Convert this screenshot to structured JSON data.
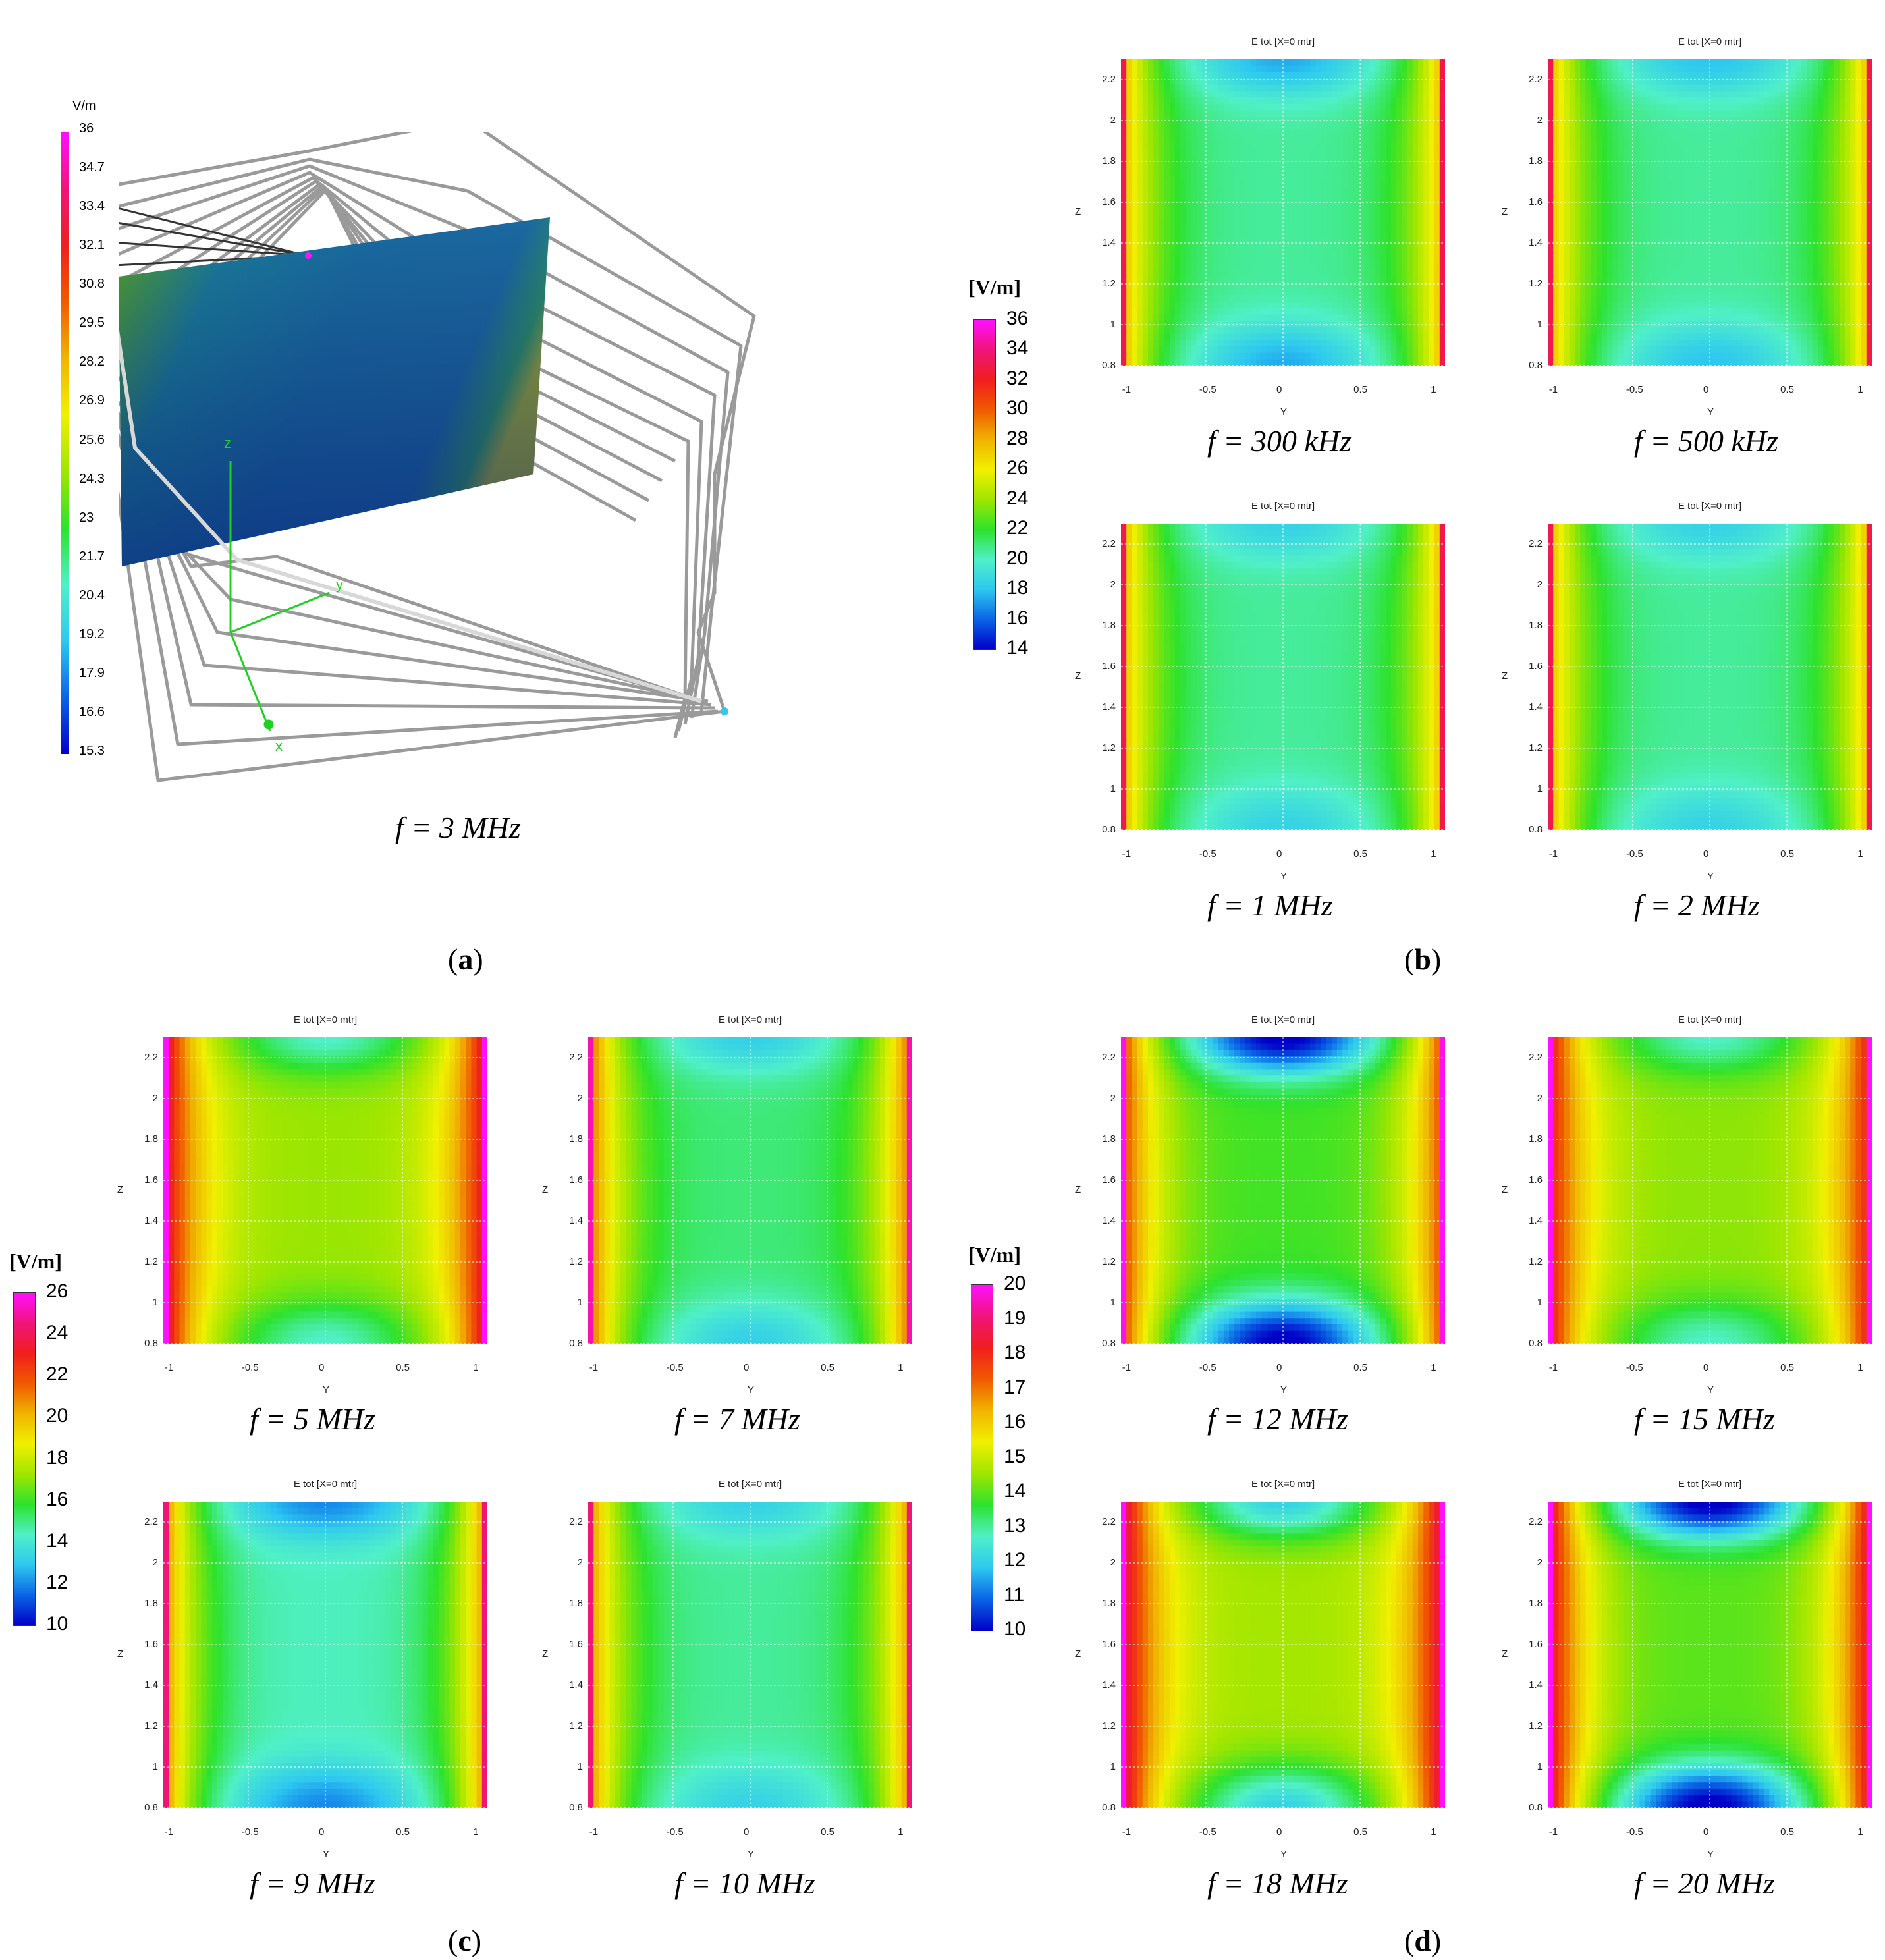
{
  "colorbars": {
    "a": {
      "unit": "V/m",
      "ticks": [
        "36",
        "34.7",
        "33.4",
        "32.1",
        "30.8",
        "29.5",
        "28.2",
        "26.9",
        "25.6",
        "24.3",
        "23",
        "21.7",
        "20.4",
        "19.2",
        "17.9",
        "16.6",
        "15.3"
      ]
    },
    "b": {
      "unit": "[V/m]",
      "ticks": [
        "36",
        "34",
        "32",
        "30",
        "28",
        "26",
        "24",
        "22",
        "20",
        "18",
        "16",
        "14"
      ]
    },
    "c": {
      "unit": "[V/m]",
      "ticks": [
        "26",
        "24",
        "22",
        "20",
        "18",
        "16",
        "14",
        "12",
        "10"
      ]
    },
    "d": {
      "unit": "[V/m]",
      "ticks": [
        "20",
        "19",
        "18",
        "17",
        "16",
        "15",
        "14",
        "13",
        "12",
        "11",
        "10"
      ]
    }
  },
  "panel_a": {
    "caption": "f = 3 MHz",
    "axis_labels": {
      "x": "x",
      "y": "y",
      "z": "z"
    },
    "letter": "a"
  },
  "panel_letters": {
    "a": "a",
    "b": "b",
    "c": "c",
    "d": "d"
  },
  "chart_data": [
    {
      "type": "heatmap",
      "panel": "b",
      "title": "E tot [X=0 mtr]",
      "caption": "f = 300 kHz",
      "xlabel": "Y",
      "ylabel": "Z",
      "xlim": [
        -1.05,
        1.05
      ],
      "ylim": [
        0.8,
        2.3
      ],
      "xticks": [
        "-1",
        "-0.5",
        "0",
        "0.5",
        "1"
      ],
      "yticks": [
        "2.2",
        "2",
        "1.8",
        "1.6",
        "1.4",
        "1.2",
        "1",
        "0.8"
      ],
      "grid": true,
      "colorbar_range_vm": [
        14,
        36
      ]
    },
    {
      "type": "heatmap",
      "panel": "b",
      "title": "E tot [X=0 mtr]",
      "caption": "f = 500 kHz",
      "xlabel": "Y",
      "ylabel": "Z",
      "xlim": [
        -1.05,
        1.05
      ],
      "ylim": [
        0.8,
        2.3
      ],
      "xticks": [
        "-1",
        "-0.5",
        "0",
        "0.5",
        "1"
      ],
      "yticks": [
        "2.2",
        "2",
        "1.8",
        "1.6",
        "1.4",
        "1.2",
        "1",
        "0.8"
      ],
      "grid": true,
      "colorbar_range_vm": [
        14,
        36
      ]
    },
    {
      "type": "heatmap",
      "panel": "b",
      "title": "E tot [X=0 mtr]",
      "caption": "f = 1 MHz",
      "xlabel": "Y",
      "ylabel": "Z",
      "xlim": [
        -1.05,
        1.05
      ],
      "ylim": [
        0.8,
        2.3
      ],
      "xticks": [
        "-1",
        "-0.5",
        "0",
        "0.5",
        "1"
      ],
      "yticks": [
        "2.2",
        "2",
        "1.8",
        "1.6",
        "1.4",
        "1.2",
        "1",
        "0.8"
      ],
      "grid": true,
      "colorbar_range_vm": [
        14,
        36
      ]
    },
    {
      "type": "heatmap",
      "panel": "b",
      "title": "E tot [X=0 mtr]",
      "caption": "f = 2 MHz",
      "xlabel": "Y",
      "ylabel": "Z",
      "xlim": [
        -1.05,
        1.05
      ],
      "ylim": [
        0.8,
        2.3
      ],
      "xticks": [
        "-1",
        "-0.5",
        "0",
        "0.5",
        "1"
      ],
      "yticks": [
        "2.2",
        "2",
        "1.8",
        "1.6",
        "1.4",
        "1.2",
        "1",
        "0.8"
      ],
      "grid": true,
      "colorbar_range_vm": [
        14,
        36
      ]
    },
    {
      "type": "heatmap",
      "panel": "c",
      "title": "E tot [X=0 mtr]",
      "caption": "f = 5 MHz",
      "xlabel": "Y",
      "ylabel": "Z",
      "xlim": [
        -1.05,
        1.05
      ],
      "ylim": [
        0.8,
        2.3
      ],
      "xticks": [
        "-1",
        "-0.5",
        "0",
        "0.5",
        "1"
      ],
      "yticks": [
        "2.2",
        "2",
        "1.8",
        "1.6",
        "1.4",
        "1.2",
        "1",
        "0.8"
      ],
      "grid": true,
      "colorbar_range_vm": [
        10,
        26
      ]
    },
    {
      "type": "heatmap",
      "panel": "c",
      "title": "E tot [X=0 mtr]",
      "caption": "f = 7 MHz",
      "xlabel": "Y",
      "ylabel": "Z",
      "xlim": [
        -1.05,
        1.05
      ],
      "ylim": [
        0.8,
        2.3
      ],
      "xticks": [
        "-1",
        "-0.5",
        "0",
        "0.5",
        "1"
      ],
      "yticks": [
        "2.2",
        "2",
        "1.8",
        "1.6",
        "1.4",
        "1.2",
        "1",
        "0.8"
      ],
      "grid": true,
      "colorbar_range_vm": [
        10,
        26
      ]
    },
    {
      "type": "heatmap",
      "panel": "c",
      "title": "E tot [X=0 mtr]",
      "caption": "f = 9 MHz",
      "xlabel": "Y",
      "ylabel": "Z",
      "xlim": [
        -1.05,
        1.05
      ],
      "ylim": [
        0.8,
        2.3
      ],
      "xticks": [
        "-1",
        "-0.5",
        "0",
        "0.5",
        "1"
      ],
      "yticks": [
        "2.2",
        "2",
        "1.8",
        "1.6",
        "1.4",
        "1.2",
        "1",
        "0.8"
      ],
      "grid": true,
      "colorbar_range_vm": [
        10,
        26
      ]
    },
    {
      "type": "heatmap",
      "panel": "c",
      "title": "E tot [X=0 mtr]",
      "caption": "f = 10 MHz",
      "xlabel": "Y",
      "ylabel": "Z",
      "xlim": [
        -1.05,
        1.05
      ],
      "ylim": [
        0.8,
        2.3
      ],
      "xticks": [
        "-1",
        "-0.5",
        "0",
        "0.5",
        "1"
      ],
      "yticks": [
        "2.2",
        "2",
        "1.8",
        "1.6",
        "1.4",
        "1.2",
        "1",
        "0.8"
      ],
      "grid": true,
      "colorbar_range_vm": [
        10,
        26
      ]
    },
    {
      "type": "heatmap",
      "panel": "d",
      "title": "E tot [X=0 mtr]",
      "caption": "f = 12 MHz",
      "xlabel": "Y",
      "ylabel": "Z",
      "xlim": [
        -1.05,
        1.05
      ],
      "ylim": [
        0.8,
        2.3
      ],
      "xticks": [
        "-1",
        "-0.5",
        "0",
        "0.5",
        "1"
      ],
      "yticks": [
        "2.2",
        "2",
        "1.8",
        "1.6",
        "1.4",
        "1.2",
        "1",
        "0.8"
      ],
      "grid": true,
      "colorbar_range_vm": [
        10,
        20
      ]
    },
    {
      "type": "heatmap",
      "panel": "d",
      "title": "E tot [X=0 mtr]",
      "caption": "f = 15 MHz",
      "xlabel": "Y",
      "ylabel": "Z",
      "xlim": [
        -1.05,
        1.05
      ],
      "ylim": [
        0.8,
        2.3
      ],
      "xticks": [
        "-1",
        "-0.5",
        "0",
        "0.5",
        "1"
      ],
      "yticks": [
        "2.2",
        "2",
        "1.8",
        "1.6",
        "1.4",
        "1.2",
        "1",
        "0.8"
      ],
      "grid": true,
      "colorbar_range_vm": [
        10,
        20
      ]
    },
    {
      "type": "heatmap",
      "panel": "d",
      "title": "E tot [X=0 mtr]",
      "caption": "f = 18 MHz",
      "xlabel": "Y",
      "ylabel": "Z",
      "xlim": [
        -1.05,
        1.05
      ],
      "ylim": [
        0.8,
        2.3
      ],
      "xticks": [
        "-1",
        "-0.5",
        "0",
        "0.5",
        "1"
      ],
      "yticks": [
        "2.2",
        "2",
        "1.8",
        "1.6",
        "1.4",
        "1.2",
        "1",
        "0.8"
      ],
      "grid": true,
      "colorbar_range_vm": [
        10,
        20
      ]
    },
    {
      "type": "heatmap",
      "panel": "d",
      "title": "E tot [X=0 mtr]",
      "caption": "f = 20 MHz",
      "xlabel": "Y",
      "ylabel": "Z",
      "xlim": [
        -1.05,
        1.05
      ],
      "ylim": [
        0.8,
        2.3
      ],
      "xticks": [
        "-1",
        "-0.5",
        "0",
        "0.5",
        "1"
      ],
      "yticks": [
        "2.2",
        "2",
        "1.8",
        "1.6",
        "1.4",
        "1.2",
        "1",
        "0.8"
      ],
      "grid": true,
      "colorbar_range_vm": [
        10,
        20
      ]
    }
  ],
  "colormap": [
    "#0000c8",
    "#0a64e6",
    "#2ec8f0",
    "#50f0c8",
    "#2de22d",
    "#a0e600",
    "#f0f000",
    "#f0b400",
    "#f05a00",
    "#f01e1e",
    "#f0147a",
    "#ff10ff"
  ]
}
